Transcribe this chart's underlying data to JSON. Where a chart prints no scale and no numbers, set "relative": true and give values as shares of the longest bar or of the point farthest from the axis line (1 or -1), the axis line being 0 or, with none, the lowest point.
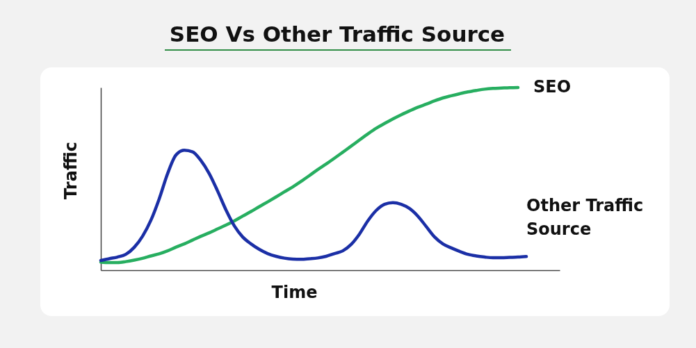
{
  "chart_data": {
    "type": "line",
    "title": "SEO Vs Other Traffic Source",
    "xlabel": "Time",
    "ylabel": "Traffic",
    "relative": true,
    "categories": [
      null,
      null,
      null,
      null,
      null,
      null,
      null,
      null,
      null,
      null,
      null,
      null,
      null,
      null,
      null,
      null,
      null,
      null,
      null,
      null,
      null,
      null,
      null,
      null,
      null,
      null,
      null,
      null,
      null,
      null,
      null,
      null,
      null,
      null,
      null,
      null,
      null,
      null,
      null,
      null,
      null,
      null,
      null,
      null,
      null,
      null,
      null,
      null,
      null,
      null,
      null,
      null,
      null,
      null,
      null,
      null
    ],
    "series": [
      {
        "name": "SEO",
        "color": "#27ae60",
        "values": [
          0.044,
          0.042,
          0.042,
          0.047,
          0.055,
          0.065,
          0.078,
          0.09,
          0.106,
          0.126,
          0.144,
          0.165,
          0.186,
          0.205,
          0.226,
          0.247,
          0.27,
          0.296,
          0.321,
          0.348,
          0.374,
          0.401,
          0.429,
          0.456,
          0.486,
          0.518,
          0.551,
          0.581,
          0.613,
          0.646,
          0.679,
          0.713,
          0.746,
          0.777,
          0.803,
          0.828,
          0.851,
          0.872,
          0.892,
          0.909,
          0.927,
          0.943,
          0.955,
          0.966,
          0.976,
          0.984,
          0.991,
          0.995,
          0.997,
          0.999,
          1,
          null,
          null,
          null,
          null,
          null
        ]
      },
      {
        "name": "Other Traffic Source",
        "color": "#1b2fa6",
        "values": [
          0.053,
          0.063,
          0.072,
          0.087,
          0.125,
          0.186,
          0.273,
          0.391,
          0.528,
          0.63,
          0.657,
          0.648,
          0.6,
          0.528,
          0.433,
          0.33,
          0.243,
          0.182,
          0.144,
          0.114,
          0.091,
          0.076,
          0.066,
          0.061,
          0.06,
          0.063,
          0.067,
          0.076,
          0.091,
          0.106,
          0.141,
          0.198,
          0.27,
          0.327,
          0.361,
          0.37,
          0.361,
          0.338,
          0.296,
          0.239,
          0.182,
          0.144,
          0.122,
          0.103,
          0.087,
          0.078,
          0.072,
          0.068,
          0.068,
          0.07,
          0.072,
          0.075,
          null,
          null,
          null,
          null
        ]
      }
    ]
  }
}
